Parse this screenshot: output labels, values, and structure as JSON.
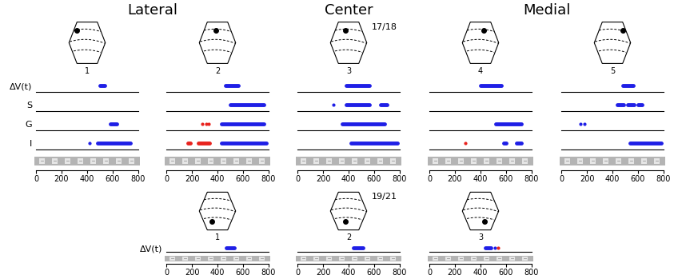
{
  "column_titles": [
    "Lateral",
    "Center",
    "Medial"
  ],
  "chart_data": [
    {
      "type": "raster",
      "label": "1",
      "categories": [
        "ΔV(t)",
        "S",
        "G",
        "I"
      ],
      "xlim": [
        0,
        800
      ],
      "xticks": [
        0,
        200,
        400,
        600,
        800
      ],
      "series": [
        {
          "category": "ΔV(t)",
          "color": "#1f1fe6",
          "spans": [
            [
              500,
              540
            ]
          ]
        },
        {
          "category": "G",
          "color": "#1f1fe6",
          "spans": [
            [
              580,
              630
            ]
          ]
        },
        {
          "category": "I",
          "color": "#1f1fe6",
          "spans": [
            [
              420,
              420
            ],
            [
              480,
              740
            ]
          ]
        }
      ]
    },
    {
      "type": "raster",
      "label": "2",
      "categories": [
        "ΔV(t)",
        "S",
        "G",
        "I"
      ],
      "xlim": [
        0,
        800
      ],
      "xticks": [
        0,
        200,
        400,
        600,
        800
      ],
      "tick_labels": "x",
      "series": [
        {
          "category": "ΔV(t)",
          "color": "#1f1fe6",
          "spans": [
            [
              460,
              560
            ]
          ]
        },
        {
          "category": "S",
          "color": "#1f1fe6",
          "spans": [
            [
              500,
              760
            ]
          ]
        },
        {
          "category": "G",
          "color": "#e8231e",
          "spans": [
            [
              280,
              280
            ],
            [
              310,
              310
            ],
            [
              330,
              330
            ]
          ]
        },
        {
          "category": "G",
          "color": "#1f1fe6",
          "spans": [
            [
              430,
              760
            ]
          ]
        },
        {
          "category": "I",
          "color": "#e8231e",
          "spans": [
            [
              170,
              190
            ],
            [
              250,
              340
            ]
          ]
        },
        {
          "category": "I",
          "color": "#1f1fe6",
          "spans": [
            [
              430,
              780
            ]
          ]
        }
      ]
    },
    {
      "type": "raster",
      "label": "3",
      "annotation": "17/18",
      "categories": [
        "ΔV(t)",
        "S",
        "G",
        "I"
      ],
      "xlim": [
        0,
        800
      ],
      "xticks": [
        0,
        200,
        400,
        600,
        800
      ],
      "tick_labels": "x",
      "series": [
        {
          "category": "ΔV(t)",
          "color": "#1f1fe6",
          "spans": [
            [
              380,
              560
            ]
          ]
        },
        {
          "category": "S",
          "color": "#1f1fe6",
          "spans": [
            [
              280,
              280
            ],
            [
              380,
              560
            ],
            [
              650,
              700
            ]
          ]
        },
        {
          "category": "G",
          "color": "#1f1fe6",
          "spans": [
            [
              350,
              680
            ]
          ]
        },
        {
          "category": "I",
          "color": "#1f1fe6",
          "spans": [
            [
              420,
              780
            ]
          ]
        }
      ]
    },
    {
      "type": "raster",
      "label": "4",
      "categories": [
        "ΔV(t)",
        "S",
        "G",
        "I"
      ],
      "xlim": [
        0,
        800
      ],
      "xticks": [
        0,
        200,
        400,
        600,
        800
      ],
      "tick_labels": "x",
      "series": [
        {
          "category": "ΔV(t)",
          "color": "#1f1fe6",
          "spans": [
            [
              400,
              560
            ]
          ]
        },
        {
          "category": "G",
          "color": "#1f1fe6",
          "spans": [
            [
              520,
              720
            ]
          ]
        },
        {
          "category": "I",
          "color": "#e8231e",
          "spans": [
            [
              280,
              280
            ]
          ]
        },
        {
          "category": "I",
          "color": "#1f1fe6",
          "spans": [
            [
              580,
              600
            ],
            [
              680,
              720
            ]
          ]
        }
      ]
    },
    {
      "type": "raster",
      "label": "5",
      "categories": [
        "ΔV(t)",
        "S",
        "G",
        "I"
      ],
      "xlim": [
        0,
        800
      ],
      "xticks": [
        0,
        200,
        400,
        600,
        800
      ],
      "tick_labels": "x",
      "series": [
        {
          "category": "ΔV(t)",
          "color": "#1f1fe6",
          "spans": [
            [
              480,
              560
            ]
          ]
        },
        {
          "category": "S",
          "color": "#1f1fe6",
          "spans": [
            [
              440,
              490
            ],
            [
              520,
              570
            ],
            [
              600,
              630
            ]
          ]
        },
        {
          "category": "G",
          "color": "#1f1fe6",
          "spans": [
            [
              150,
              150
            ],
            [
              180,
              180
            ]
          ]
        },
        {
          "category": "I",
          "color": "#1f1fe6",
          "spans": [
            [
              540,
              780
            ]
          ]
        }
      ]
    },
    {
      "type": "raster",
      "label": "1",
      "categories": [
        "ΔV(t)"
      ],
      "xlim": [
        0,
        800
      ],
      "xticks": [
        0,
        200,
        400,
        600,
        800
      ],
      "series": [
        {
          "category": "ΔV(t)",
          "color": "#1f1fe6",
          "spans": [
            [
              470,
              530
            ]
          ]
        }
      ]
    },
    {
      "type": "raster",
      "label": "2",
      "annotation": "19/21",
      "categories": [
        "ΔV(t)"
      ],
      "xlim": [
        0,
        800
      ],
      "xticks": [
        0,
        200,
        400,
        600,
        800
      ],
      "tick_labels": "x",
      "series": [
        {
          "category": "ΔV(t)",
          "color": "#1f1fe6",
          "spans": [
            [
              440,
              510
            ]
          ]
        }
      ]
    },
    {
      "type": "raster",
      "label": "3",
      "categories": [
        "ΔV(t)"
      ],
      "xlim": [
        0,
        800
      ],
      "xticks": [
        0,
        200,
        400,
        600,
        800
      ],
      "tick_labels": "x",
      "series": [
        {
          "category": "ΔV(t)",
          "color": "#1f1fe6",
          "spans": [
            [
              440,
              480
            ],
            [
              510,
              510
            ]
          ]
        },
        {
          "category": "ΔV(t)",
          "color": "#e8231e",
          "spans": [
            [
              540,
              540
            ]
          ]
        }
      ]
    }
  ]
}
